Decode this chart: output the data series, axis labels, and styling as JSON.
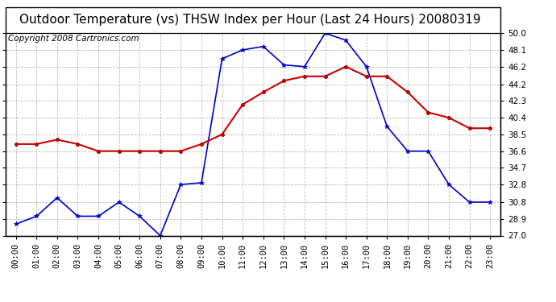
{
  "title": "Outdoor Temperature (vs) THSW Index per Hour (Last 24 Hours) 20080319",
  "copyright": "Copyright 2008 Cartronics.com",
  "hours": [
    "00:00",
    "01:00",
    "02:00",
    "03:00",
    "04:00",
    "05:00",
    "06:00",
    "07:00",
    "08:00",
    "09:00",
    "10:00",
    "11:00",
    "12:00",
    "13:00",
    "14:00",
    "15:00",
    "16:00",
    "17:00",
    "18:00",
    "19:00",
    "20:00",
    "21:00",
    "22:00",
    "23:00"
  ],
  "blue_thsw": [
    28.3,
    29.2,
    31.3,
    29.2,
    29.2,
    30.8,
    29.2,
    27.0,
    32.8,
    33.0,
    47.1,
    48.1,
    48.5,
    46.4,
    46.2,
    50.0,
    49.2,
    46.2,
    39.4,
    36.6,
    36.6,
    32.8,
    30.8,
    30.8
  ],
  "red_temp": [
    37.4,
    37.4,
    37.9,
    37.4,
    36.6,
    36.6,
    36.6,
    36.6,
    36.6,
    37.4,
    38.5,
    41.9,
    43.3,
    44.6,
    45.1,
    45.1,
    46.2,
    45.1,
    45.1,
    43.3,
    41.0,
    40.4,
    39.2,
    39.2
  ],
  "ylim": [
    27.0,
    50.0
  ],
  "yticks": [
    27.0,
    28.9,
    30.8,
    32.8,
    34.7,
    36.6,
    38.5,
    40.4,
    42.3,
    44.2,
    46.2,
    48.1,
    50.0
  ],
  "blue_color": "#0000cc",
  "red_color": "#cc0000",
  "bg_color": "#ffffff",
  "grid_color": "#aaaaaa",
  "title_fontsize": 11,
  "copyright_fontsize": 7.5,
  "tick_fontsize": 7.5
}
